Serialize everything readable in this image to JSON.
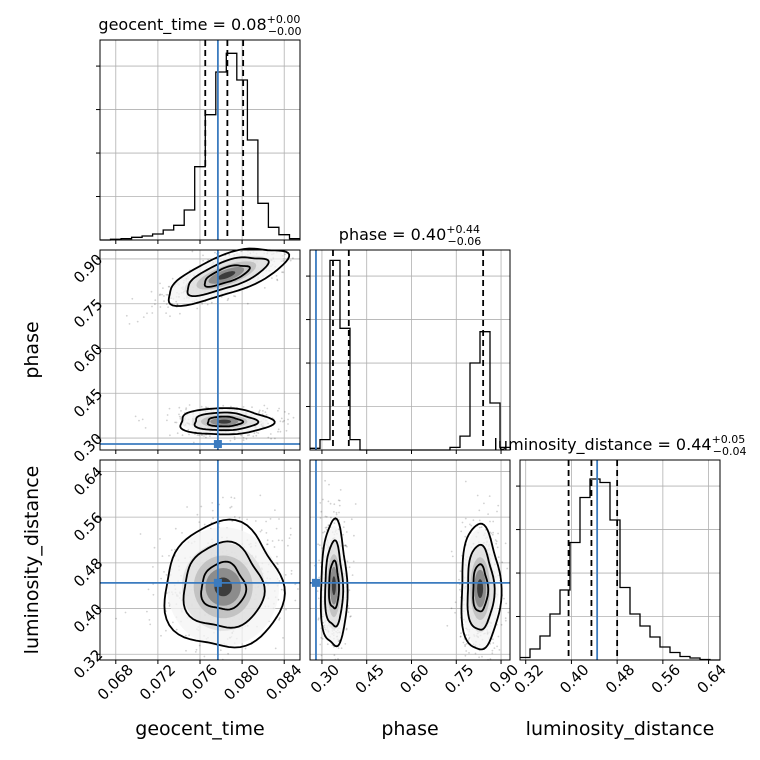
{
  "chart_data": {
    "type": "corner",
    "parameters": [
      "geocent_time",
      "phase",
      "luminosity_distance"
    ],
    "truths": {
      "geocent_time": 0.0777,
      "phase": 0.28,
      "luminosity_distance": 0.445
    },
    "colors": {
      "truth": "#3b7bbf",
      "hist": "#000000",
      "quantile": "#000000",
      "grid": "#b0b0b0"
    },
    "grid": true,
    "axes": {
      "geocent_time": {
        "label": "geocent_time",
        "range": [
          0.0665,
          0.0855
        ],
        "ticks": [
          0.068,
          0.072,
          0.076,
          0.08,
          0.084
        ],
        "tick_labels": [
          "0.068",
          "0.072",
          "0.076",
          "0.080",
          "0.084"
        ]
      },
      "phase": {
        "label": "phase",
        "range": [
          0.26,
          0.93
        ],
        "ticks": [
          0.3,
          0.45,
          0.6,
          0.75,
          0.9
        ],
        "tick_labels": [
          "0.30",
          "0.45",
          "0.60",
          "0.75",
          "0.90"
        ]
      },
      "luminosity_distance": {
        "label": "luminosity_distance",
        "range": [
          0.31,
          0.66
        ],
        "ticks": [
          0.32,
          0.4,
          0.48,
          0.56,
          0.64
        ],
        "tick_labels": [
          "0.32",
          "0.40",
          "0.48",
          "0.56",
          "0.64"
        ]
      }
    },
    "diagonals": [
      {
        "parameter": "geocent_time",
        "title": {
          "name": "geocent_time",
          "median": "0.08",
          "plus": "+0.00",
          "minus": "−0.00"
        },
        "quantiles": [
          0.0765,
          0.0786,
          0.0801
        ],
        "bin_edges": [
          0.0665,
          0.0675,
          0.0685,
          0.0695,
          0.0705,
          0.0715,
          0.0725,
          0.0735,
          0.0745,
          0.0755,
          0.0765,
          0.0775,
          0.0785,
          0.0795,
          0.0805,
          0.0815,
          0.0825,
          0.0835,
          0.0845,
          0.0855
        ],
        "counts": [
          0,
          1,
          2,
          4,
          6,
          9,
          15,
          22,
          45,
          110,
          188,
          252,
          280,
          240,
          150,
          55,
          19,
          8,
          2
        ],
        "ymax": 300
      },
      {
        "parameter": "phase",
        "title": {
          "name": "phase",
          "median": "0.40",
          "plus": "+0.44",
          "minus": "−0.06"
        },
        "quantiles": [
          0.337,
          0.39,
          0.84
        ],
        "bin_edges": [
          0.26,
          0.2935,
          0.327,
          0.3605,
          0.394,
          0.4275,
          0.461,
          0.4945,
          0.528,
          0.5615,
          0.595,
          0.6285,
          0.662,
          0.6955,
          0.729,
          0.7625,
          0.796,
          0.8295,
          0.863,
          0.8965,
          0.93
        ],
        "counts": [
          10,
          60,
          1090,
          700,
          60,
          0,
          0,
          0,
          0,
          0,
          0,
          0,
          0,
          0,
          15,
          80,
          500,
          680,
          270,
          15
        ],
        "ymax": 1150
      },
      {
        "parameter": "luminosity_distance",
        "title": {
          "name": "luminosity_distance",
          "median": "0.44",
          "plus": "+0.05",
          "minus": "−0.04"
        },
        "quantiles": [
          0.395,
          0.435,
          0.48
        ],
        "bin_edges": [
          0.31,
          0.3275,
          0.345,
          0.3625,
          0.38,
          0.3975,
          0.415,
          0.4325,
          0.45,
          0.4675,
          0.485,
          0.5025,
          0.52,
          0.5375,
          0.555,
          0.5725,
          0.59,
          0.6075,
          0.625,
          0.6425,
          0.66
        ],
        "counts": [
          5,
          22,
          48,
          92,
          140,
          235,
          325,
          362,
          355,
          280,
          145,
          92,
          68,
          46,
          26,
          15,
          7,
          4,
          1,
          0
        ],
        "ymax": 400
      }
    ],
    "pairs": [
      {
        "x": "geocent_time",
        "y": "phase",
        "modes": [
          {
            "cx": 0.0785,
            "cy": 0.845,
            "rx": 0.003,
            "ry": 0.032,
            "rot": -20,
            "shear": 0.0
          },
          {
            "cx": 0.0783,
            "cy": 0.355,
            "rx": 0.0022,
            "ry": 0.022,
            "rot": 0,
            "shear": 0.0
          }
        ]
      },
      {
        "x": "geocent_time",
        "y": "luminosity_distance",
        "modes": [
          {
            "cx": 0.0782,
            "cy": 0.438,
            "rx": 0.0028,
            "ry": 0.055,
            "rot": 0,
            "shear": 0.0
          }
        ]
      },
      {
        "x": "phase",
        "y": "luminosity_distance",
        "modes": [
          {
            "cx": 0.34,
            "cy": 0.44,
            "rx": 0.022,
            "ry": 0.055,
            "rot": 0,
            "shear": 0.0
          },
          {
            "cx": 0.83,
            "cy": 0.435,
            "rx": 0.033,
            "ry": 0.055,
            "rot": 0,
            "shear": 0.0
          }
        ]
      }
    ]
  }
}
